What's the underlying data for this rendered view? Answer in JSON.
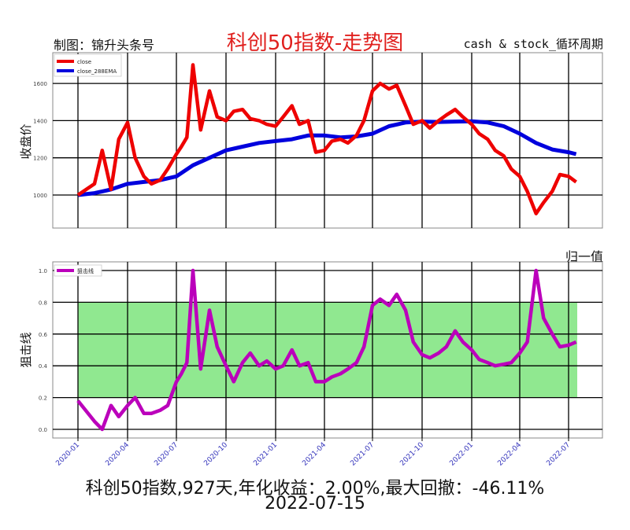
{
  "header": {
    "credit": "制图：锦升头条号",
    "title": "科创50指数-走势图",
    "brand": "cash & stock_循环周期"
  },
  "colors": {
    "close": "#ee0000",
    "ema": "#0000dd",
    "line": "#bb00bb",
    "band": "#90e890",
    "grid": "#000000",
    "title": "#e0201e",
    "xtick": "#3333bb"
  },
  "chart_data": [
    {
      "type": "line",
      "title": "科创50指数-走势图",
      "ylabel": "收盘价",
      "xlabel": "",
      "ylim": [
        780,
        1760
      ],
      "yticks": [
        1000,
        1200,
        1400,
        1600
      ],
      "grid": true,
      "legend_position": "upper left",
      "x_ticks": [
        "2020-01",
        "2020-04",
        "2020-07",
        "2020-10",
        "2021-01",
        "2021-04",
        "2021-07",
        "2021-10",
        "2022-01",
        "2022-04",
        "2022-07"
      ],
      "series": [
        {
          "name": "close",
          "color": "#ee0000",
          "x": [
            "2020-01",
            "2020-02",
            "2020-02-15",
            "2020-03",
            "2020-03-15",
            "2020-04",
            "2020-04-15",
            "2020-05",
            "2020-05-15",
            "2020-06",
            "2020-06-15",
            "2020-07",
            "2020-07-10",
            "2020-07-20",
            "2020-08",
            "2020-08-15",
            "2020-09",
            "2020-09-15",
            "2020-10",
            "2020-10-15",
            "2020-11",
            "2020-11-15",
            "2020-12",
            "2020-12-15",
            "2021-01",
            "2021-01-15",
            "2021-02",
            "2021-02-15",
            "2021-03",
            "2021-03-15",
            "2021-04",
            "2021-04-15",
            "2021-05",
            "2021-05-15",
            "2021-06",
            "2021-06-15",
            "2021-07",
            "2021-07-15",
            "2021-08",
            "2021-08-15",
            "2021-09",
            "2021-09-15",
            "2021-10",
            "2021-10-15",
            "2021-11",
            "2021-11-15",
            "2021-12",
            "2021-12-15",
            "2022-01",
            "2022-01-15",
            "2022-02",
            "2022-02-15",
            "2022-03",
            "2022-03-15",
            "2022-04",
            "2022-04-15",
            "2022-05",
            "2022-05-15",
            "2022-06",
            "2022-06-15",
            "2022-07",
            "2022-07-15"
          ],
          "values": [
            1000,
            1060,
            1240,
            1030,
            1300,
            1390,
            1200,
            1100,
            1060,
            1080,
            1140,
            1220,
            1260,
            1310,
            1700,
            1350,
            1560,
            1420,
            1400,
            1450,
            1460,
            1410,
            1400,
            1380,
            1370,
            1420,
            1480,
            1380,
            1400,
            1230,
            1240,
            1290,
            1300,
            1280,
            1320,
            1400,
            1560,
            1600,
            1570,
            1590,
            1480,
            1380,
            1400,
            1360,
            1400,
            1430,
            1460,
            1420,
            1380,
            1330,
            1300,
            1240,
            1210,
            1140,
            1100,
            1020,
            900,
            960,
            1020,
            1110,
            1100,
            1070
          ]
        },
        {
          "name": "close_288EMA",
          "color": "#0000dd",
          "x": [
            "2020-01",
            "2020-02",
            "2020-03",
            "2020-04",
            "2020-05",
            "2020-06",
            "2020-07",
            "2020-08",
            "2020-09",
            "2020-10",
            "2020-11",
            "2020-12",
            "2021-01",
            "2021-02",
            "2021-03",
            "2021-04",
            "2021-05",
            "2021-06",
            "2021-07",
            "2021-08",
            "2021-09",
            "2021-10",
            "2021-11",
            "2021-12",
            "2022-01",
            "2022-02",
            "2022-03",
            "2022-04",
            "2022-05",
            "2022-06",
            "2022-07",
            "2022-07-15"
          ],
          "values": [
            1000,
            1010,
            1030,
            1060,
            1070,
            1080,
            1100,
            1160,
            1200,
            1240,
            1260,
            1280,
            1290,
            1300,
            1320,
            1320,
            1310,
            1315,
            1330,
            1370,
            1390,
            1395,
            1393,
            1395,
            1396,
            1390,
            1370,
            1330,
            1280,
            1245,
            1230,
            1220
          ]
        }
      ]
    },
    {
      "type": "line",
      "title": "归一值",
      "ylabel": "狙击线",
      "xlabel": "",
      "ylim": [
        -0.05,
        1.05
      ],
      "yticks": [
        0.0,
        0.2,
        0.4,
        0.6,
        0.8,
        1.0
      ],
      "grid": true,
      "legend_position": "upper left",
      "band": {
        "from": 0.2,
        "to": 0.8,
        "x_start": "2020-01",
        "x_end": "2022-07-15",
        "color": "#90e890"
      },
      "x_ticks": [
        "2020-01",
        "2020-04",
        "2020-07",
        "2020-10",
        "2021-01",
        "2021-04",
        "2021-07",
        "2021-10",
        "2022-01",
        "2022-04",
        "2022-07"
      ],
      "series": [
        {
          "name": "狙击线",
          "color": "#bb00bb",
          "x": [
            "2020-01",
            "2020-02",
            "2020-02-15",
            "2020-03",
            "2020-03-15",
            "2020-04",
            "2020-04-15",
            "2020-05",
            "2020-05-15",
            "2020-06",
            "2020-06-15",
            "2020-07",
            "2020-07-10",
            "2020-07-20",
            "2020-08",
            "2020-08-15",
            "2020-09",
            "2020-09-15",
            "2020-10",
            "2020-10-15",
            "2020-11",
            "2020-11-15",
            "2020-12",
            "2020-12-15",
            "2021-01",
            "2021-01-15",
            "2021-02",
            "2021-02-15",
            "2021-03",
            "2021-03-15",
            "2021-04",
            "2021-04-15",
            "2021-05",
            "2021-05-15",
            "2021-06",
            "2021-06-15",
            "2021-07",
            "2021-07-15",
            "2021-08",
            "2021-08-15",
            "2021-09",
            "2021-09-15",
            "2021-10",
            "2021-10-15",
            "2021-11",
            "2021-11-15",
            "2021-12",
            "2021-12-15",
            "2022-01",
            "2022-01-15",
            "2022-02",
            "2022-02-15",
            "2022-03",
            "2022-03-15",
            "2022-04",
            "2022-04-15",
            "2022-05",
            "2022-05-15",
            "2022-06",
            "2022-06-15",
            "2022-07",
            "2022-07-15"
          ],
          "values": [
            0.18,
            0.05,
            0.0,
            0.15,
            0.08,
            0.15,
            0.2,
            0.1,
            0.1,
            0.12,
            0.15,
            0.3,
            0.35,
            0.42,
            1.0,
            0.38,
            0.75,
            0.52,
            0.4,
            0.3,
            0.42,
            0.48,
            0.4,
            0.43,
            0.38,
            0.4,
            0.5,
            0.4,
            0.42,
            0.3,
            0.3,
            0.33,
            0.35,
            0.38,
            0.42,
            0.52,
            0.78,
            0.82,
            0.78,
            0.85,
            0.75,
            0.55,
            0.47,
            0.45,
            0.48,
            0.52,
            0.62,
            0.55,
            0.5,
            0.44,
            0.42,
            0.4,
            0.41,
            0.42,
            0.48,
            0.55,
            1.0,
            0.7,
            0.6,
            0.52,
            0.53,
            0.55
          ]
        }
      ]
    }
  ],
  "axes_top": {
    "ylabel": "收盘价",
    "yticks": [
      "1600",
      "1400",
      "1200",
      "1000"
    ],
    "legend": [
      {
        "label": "close",
        "color": "#ee0000"
      },
      {
        "label": "close_288EMA",
        "color": "#0000dd"
      }
    ]
  },
  "axes_bottom": {
    "title": "归一值",
    "ylabel": "狙击线",
    "yticks": [
      "1.0",
      "0.8",
      "0.6",
      "0.4",
      "0.2",
      "0.0"
    ],
    "legend": [
      {
        "label": "狙击线",
        "color": "#bb00bb"
      }
    ]
  },
  "xticks": [
    "2020-01",
    "2020-04",
    "2020-07",
    "2020-10",
    "2021-01",
    "2021-04",
    "2021-07",
    "2021-10",
    "2022-01",
    "2022-04",
    "2022-07"
  ],
  "footer": {
    "summary": "科创50指数,927天,年化收益：2.00%,最大回撤：-46.11%",
    "date": "2022-07-15"
  }
}
